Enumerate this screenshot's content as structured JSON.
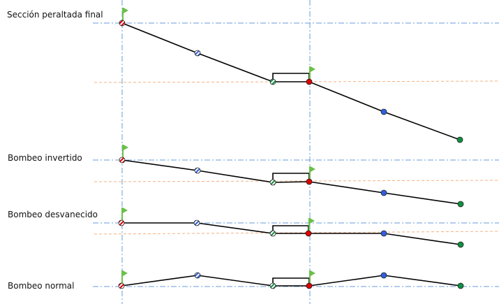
{
  "rows": [
    {
      "label": "Sección peraltada final"
    },
    {
      "label": "Bombeo invertido"
    },
    {
      "label": "Bombeo desvanecido"
    },
    {
      "label": "Bombeo normal"
    }
  ],
  "colors": {
    "reference_line": "#6a9bd8",
    "orange_line": "#f4b183",
    "profile": "#000000",
    "flag": "#6cc04a",
    "red": "#e00000",
    "blue": "#3060e0",
    "green": "#109040"
  },
  "point_styles": [
    "red-hatched",
    "blue-hatched",
    "green-hatched",
    "red-solid",
    "blue-solid",
    "green-solid"
  ]
}
